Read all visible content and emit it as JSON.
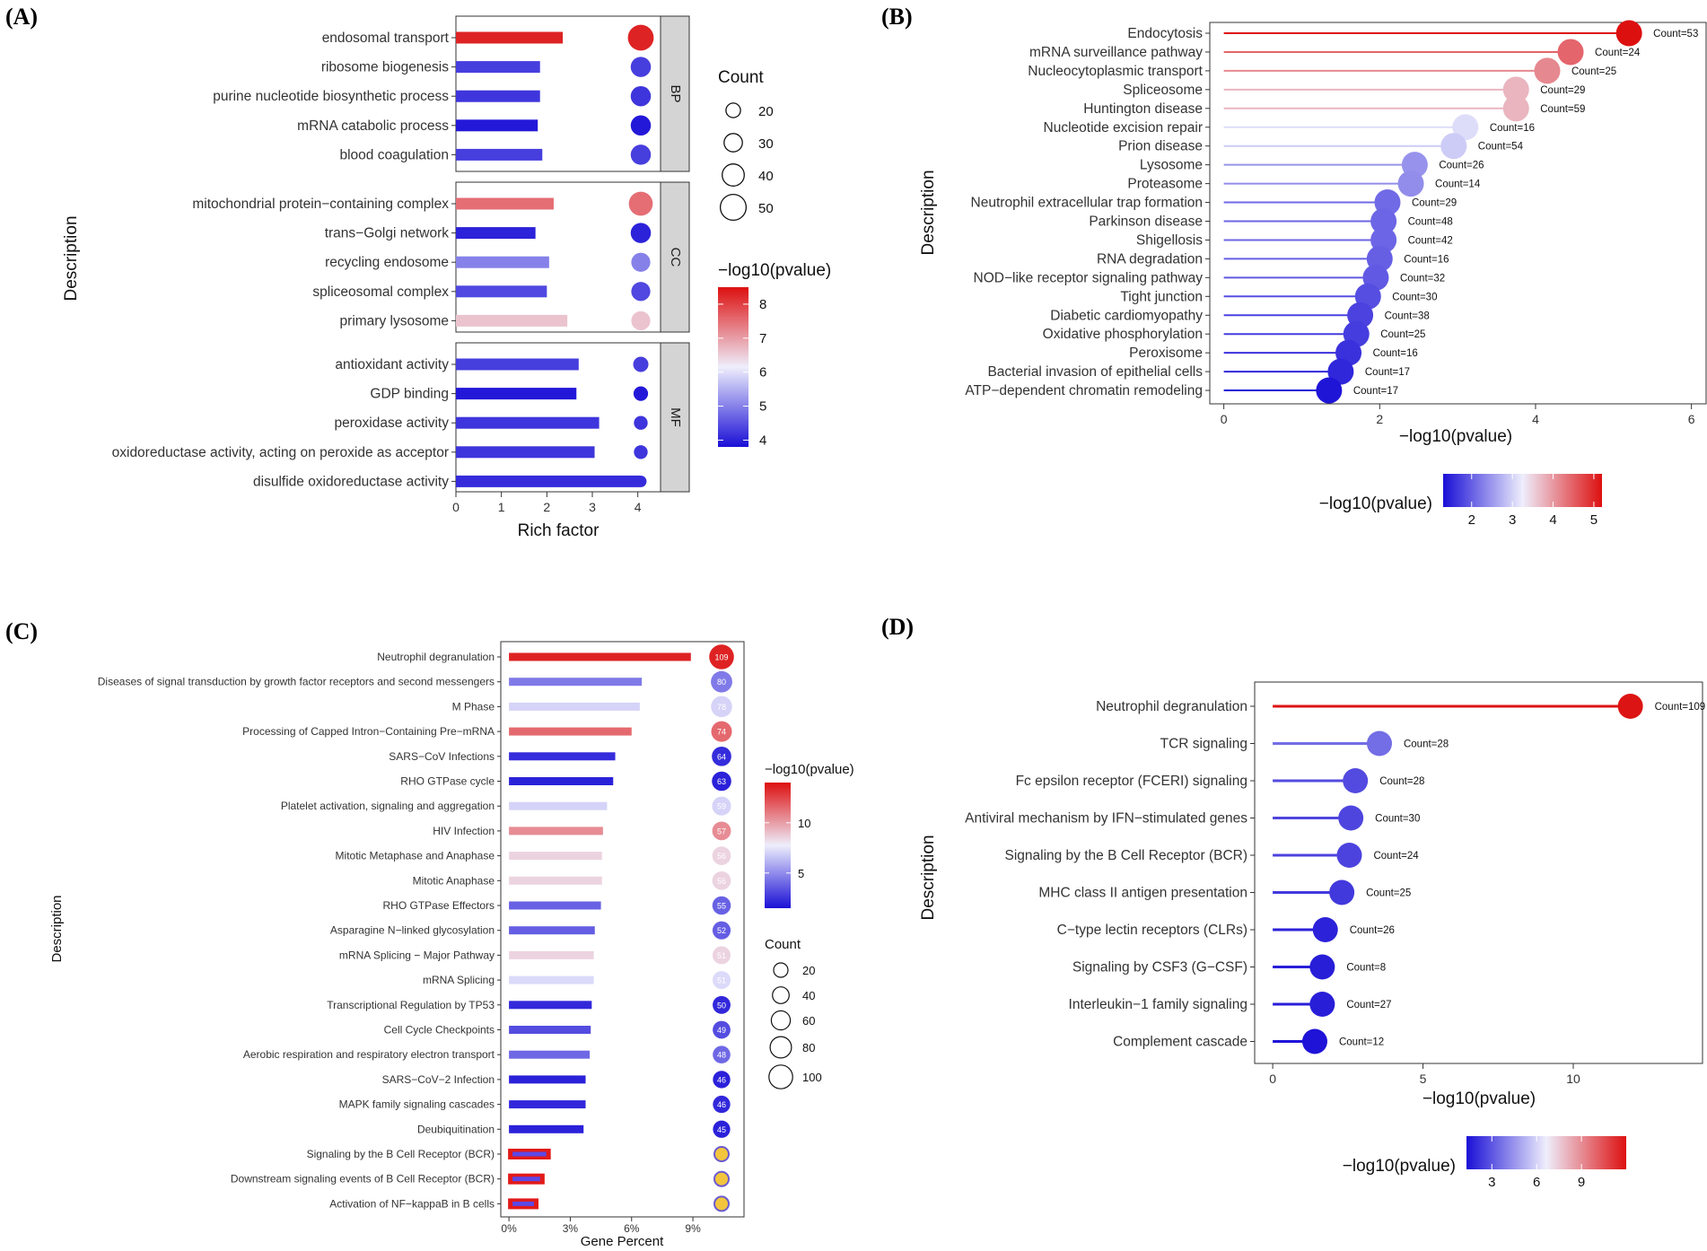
{
  "panels": {
    "A": "(A)",
    "B": "(B)",
    "C": "(C)",
    "D": "(D)"
  },
  "colors": {
    "low": "#1a0fd6",
    "mid": "#eeeefc",
    "high": "#dd1010",
    "strip_fill": "#d4d4d4"
  },
  "chart_data": [
    {
      "panel": "A",
      "type": "bar",
      "xlabel": "Rich factor",
      "ylabel": "Description",
      "xlim": [
        0,
        4.5
      ],
      "xticks": [
        0,
        1,
        2,
        3,
        4
      ],
      "groups": [
        {
          "name": "BP",
          "items": [
            {
              "label": "endosomal transport",
              "rich_factor": 2.35,
              "neglog10p": 8.3,
              "count": 50
            },
            {
              "label": "ribosome biogenesis",
              "rich_factor": 1.85,
              "neglog10p": 4.3,
              "count": 35
            },
            {
              "label": "purine nucleotide biosynthetic process",
              "rich_factor": 1.85,
              "neglog10p": 4.2,
              "count": 35
            },
            {
              "label": "mRNA catabolic process",
              "rich_factor": 1.8,
              "neglog10p": 3.9,
              "count": 35
            },
            {
              "label": "blood coagulation",
              "rich_factor": 1.9,
              "neglog10p": 4.3,
              "count": 35
            }
          ]
        },
        {
          "name": "CC",
          "items": [
            {
              "label": "mitochondrial protein−containing complex",
              "rich_factor": 2.15,
              "neglog10p": 7.5,
              "count": 45
            },
            {
              "label": "trans−Golgi network",
              "rich_factor": 1.75,
              "neglog10p": 4.0,
              "count": 35
            },
            {
              "label": "recycling endosome",
              "rich_factor": 2.05,
              "neglog10p": 5.0,
              "count": 32
            },
            {
              "label": "spliceosomal complex",
              "rich_factor": 2.0,
              "neglog10p": 4.4,
              "count": 32
            },
            {
              "label": "primary lysosome",
              "rich_factor": 2.45,
              "neglog10p": 6.6,
              "count": 32
            }
          ]
        },
        {
          "name": "MF",
          "items": [
            {
              "label": "antioxidant activity",
              "rich_factor": 2.7,
              "neglog10p": 4.3,
              "count": 22
            },
            {
              "label": "GDP binding",
              "rich_factor": 2.65,
              "neglog10p": 3.9,
              "count": 20
            },
            {
              "label": "peroxidase activity",
              "rich_factor": 3.15,
              "neglog10p": 4.2,
              "count": 18
            },
            {
              "label": "oxidoreductase activity, acting on peroxide as acceptor",
              "rich_factor": 3.05,
              "neglog10p": 4.2,
              "count": 18
            },
            {
              "label": "disulfide oxidoreductase activity",
              "rich_factor": 4.05,
              "neglog10p": 4.1,
              "count": 12
            }
          ]
        }
      ],
      "legend_count": {
        "title": "Count",
        "values": [
          "20",
          "30",
          "40",
          "50"
        ]
      },
      "legend_color": {
        "title": "−log10(pvalue)",
        "range": [
          3.8,
          8.5
        ],
        "ticks": [
          "4",
          "5",
          "6",
          "7",
          "8"
        ]
      }
    },
    {
      "panel": "B",
      "type": "lollipop",
      "xlabel": "−log10(pvalue)",
      "ylabel": "Description",
      "xlim": [
        0,
        6
      ],
      "xticks": [
        0,
        2,
        4,
        6
      ],
      "items": [
        {
          "label": "Endocytosis",
          "value": 5.2,
          "count_label": "Count=53"
        },
        {
          "label": "mRNA surveillance pathway",
          "value": 4.45,
          "count_label": "Count=24"
        },
        {
          "label": "Nucleocytoplasmic transport",
          "value": 4.15,
          "count_label": "Count=25"
        },
        {
          "label": "Spliceosome",
          "value": 3.75,
          "count_label": "Count=29"
        },
        {
          "label": "Huntington disease",
          "value": 3.75,
          "count_label": "Count=59"
        },
        {
          "label": "Nucleotide excision repair",
          "value": 3.1,
          "count_label": "Count=16"
        },
        {
          "label": "Prion disease",
          "value": 2.95,
          "count_label": "Count=54"
        },
        {
          "label": "Lysosome",
          "value": 2.45,
          "count_label": "Count=26"
        },
        {
          "label": "Proteasome",
          "value": 2.4,
          "count_label": "Count=14"
        },
        {
          "label": "Neutrophil extracellular trap formation",
          "value": 2.1,
          "count_label": "Count=29"
        },
        {
          "label": "Parkinson disease",
          "value": 2.05,
          "count_label": "Count=48"
        },
        {
          "label": "Shigellosis",
          "value": 2.05,
          "count_label": "Count=42"
        },
        {
          "label": "RNA degradation",
          "value": 2.0,
          "count_label": "Count=16"
        },
        {
          "label": "NOD−like receptor signaling pathway",
          "value": 1.95,
          "count_label": "Count=32"
        },
        {
          "label": "Tight junction",
          "value": 1.85,
          "count_label": "Count=30"
        },
        {
          "label": "Diabetic cardiomyopathy",
          "value": 1.75,
          "count_label": "Count=38"
        },
        {
          "label": "Oxidative phosphorylation",
          "value": 1.7,
          "count_label": "Count=25"
        },
        {
          "label": "Peroxisome",
          "value": 1.6,
          "count_label": "Count=16"
        },
        {
          "label": "Bacterial invasion of epithelial cells",
          "value": 1.5,
          "count_label": "Count=17"
        },
        {
          "label": "ATP−dependent chromatin remodeling",
          "value": 1.35,
          "count_label": "Count=17"
        }
      ],
      "legend_color": {
        "title": "−log10(pvalue)",
        "range": [
          1.3,
          5.2
        ],
        "ticks": [
          "2",
          "3",
          "4",
          "5"
        ]
      }
    },
    {
      "panel": "C",
      "type": "bar",
      "xlabel": "Gene Percent",
      "ylabel": "Description",
      "xlim": [
        -0.4,
        11.5
      ],
      "xticks": [
        "0%",
        "3%",
        "6%",
        "9%"
      ],
      "items": [
        {
          "label": "Neutrophil degranulation",
          "percent": 8.9,
          "neglog10p": 13.5,
          "count": "109"
        },
        {
          "label": "Diseases of signal transduction by growth factor receptors and second messengers",
          "percent": 6.5,
          "neglog10p": 4.5,
          "count": "80"
        },
        {
          "label": "M Phase",
          "percent": 6.4,
          "neglog10p": 7.0,
          "count": "78"
        },
        {
          "label": "Processing of Capped Intron−Containing Pre−mRNA",
          "percent": 6.0,
          "neglog10p": 11.5,
          "count": "74"
        },
        {
          "label": "SARS−CoV Infections",
          "percent": 5.2,
          "neglog10p": 2.3,
          "count": "64"
        },
        {
          "label": "RHO GTPase cycle",
          "percent": 5.1,
          "neglog10p": 2.0,
          "count": "63"
        },
        {
          "label": "Platelet activation, signaling and aggregation",
          "percent": 4.8,
          "neglog10p": 7.0,
          "count": "59"
        },
        {
          "label": "HIV Infection",
          "percent": 4.6,
          "neglog10p": 10.5,
          "count": "57"
        },
        {
          "label": "Mitotic Metaphase and Anaphase",
          "percent": 4.55,
          "neglog10p": 8.5,
          "count": "56"
        },
        {
          "label": "Mitotic Anaphase",
          "percent": 4.55,
          "neglog10p": 8.5,
          "count": "56"
        },
        {
          "label": "RHO GTPase Effectors",
          "percent": 4.5,
          "neglog10p": 3.8,
          "count": "55"
        },
        {
          "label": "Asparagine N−linked glycosylation",
          "percent": 4.2,
          "neglog10p": 3.7,
          "count": "52"
        },
        {
          "label": "mRNA Splicing − Major Pathway",
          "percent": 4.15,
          "neglog10p": 8.5,
          "count": "51"
        },
        {
          "label": "mRNA Splicing",
          "percent": 4.15,
          "neglog10p": 7.2,
          "count": "51"
        },
        {
          "label": "Transcriptional Regulation by TP53",
          "percent": 4.05,
          "neglog10p": 2.2,
          "count": "50"
        },
        {
          "label": "Cell Cycle Checkpoints",
          "percent": 4.0,
          "neglog10p": 3.2,
          "count": "49"
        },
        {
          "label": "Aerobic respiration and respiratory electron transport",
          "percent": 3.95,
          "neglog10p": 4.0,
          "count": "48"
        },
        {
          "label": "SARS−CoV−2 Infection",
          "percent": 3.75,
          "neglog10p": 2.0,
          "count": "46"
        },
        {
          "label": "MAPK family signaling cascades",
          "percent": 3.75,
          "neglog10p": 2.2,
          "count": "46"
        },
        {
          "label": "Deubiquitination",
          "percent": 3.65,
          "neglog10p": 2.0,
          "count": "45"
        },
        {
          "label": "Signaling by the B Cell Receptor (BCR)",
          "percent": 2.0,
          "neglog10p": 3.5,
          "count": "",
          "highlight": true
        },
        {
          "label": "Downstream signaling events of B Cell Receptor (BCR)",
          "percent": 1.7,
          "neglog10p": 3.5,
          "count": "",
          "highlight": true
        },
        {
          "label": "Activation of NF−kappaB in B cells",
          "percent": 1.4,
          "neglog10p": 3.5,
          "count": "",
          "highlight": true
        }
      ],
      "legend_count": {
        "title": "Count",
        "values": [
          "20",
          "40",
          "60",
          "80",
          "100"
        ]
      },
      "legend_color": {
        "title": "−log10(pvalue)",
        "range": [
          1.5,
          14
        ],
        "ticks": [
          "5",
          "10"
        ]
      }
    },
    {
      "panel": "D",
      "type": "lollipop",
      "xlabel": "−log10(pvalue)",
      "ylabel": "Description",
      "xlim": [
        -0.6,
        14.3
      ],
      "xticks": [
        0,
        5,
        10
      ],
      "items": [
        {
          "label": "Neutrophil degranulation",
          "value": 11.9,
          "count_label": "Count=109"
        },
        {
          "label": "TCR signaling",
          "value": 3.55,
          "count_label": "Count=28"
        },
        {
          "label": "Fc epsilon receptor (FCERI) signaling",
          "value": 2.75,
          "count_label": "Count=28"
        },
        {
          "label": "Antiviral mechanism by IFN−stimulated genes",
          "value": 2.6,
          "count_label": "Count=30"
        },
        {
          "label": "Signaling by the B Cell Receptor (BCR)",
          "value": 2.55,
          "count_label": "Count=24"
        },
        {
          "label": "MHC class II antigen presentation",
          "value": 2.3,
          "count_label": "Count=25"
        },
        {
          "label": "C−type lectin receptors (CLRs)",
          "value": 1.75,
          "count_label": "Count=26"
        },
        {
          "label": "Signaling by CSF3 (G−CSF)",
          "value": 1.65,
          "count_label": "Count=8"
        },
        {
          "label": "Interleukin−1 family signaling",
          "value": 1.65,
          "count_label": "Count=27"
        },
        {
          "label": "Complement cascade",
          "value": 1.4,
          "count_label": "Count=12"
        }
      ],
      "legend_color": {
        "title": "−log10(pvalue)",
        "range": [
          1.3,
          12.0
        ],
        "ticks": [
          "3",
          "6",
          "9"
        ]
      }
    }
  ]
}
